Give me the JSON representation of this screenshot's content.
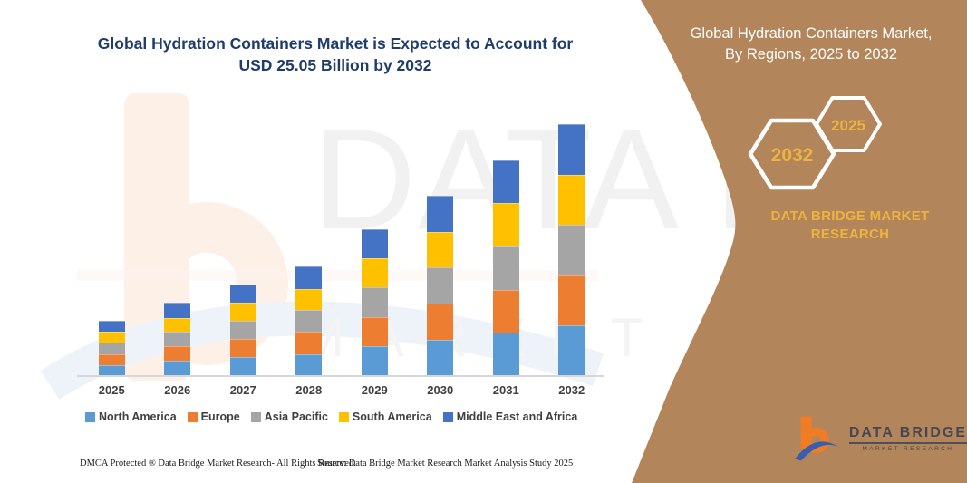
{
  "title": {
    "line1": "Global Hydration Containers Market is Expected to Account for",
    "line2": "USD 25.05 Billion by 2032"
  },
  "sidebar": {
    "heading": "Global Hydration Containers Market, By Regions, 2025 to 2032",
    "hexagon_large": "2032",
    "hexagon_small": "2025",
    "brand_line1": "DATA BRIDGE MARKET",
    "brand_line2": "RESEARCH",
    "background_color": "#b3855b",
    "accent_gold": "#edb33f"
  },
  "logo": {
    "name": "DATA BRIDGE",
    "tagline": "MARKET RESEARCH"
  },
  "watermark": {
    "line1": "DATA BRIDGE",
    "line2": "MARKET RESEARCH"
  },
  "footer": {
    "left": "DMCA Protected ® Data Bridge Market Research-  All Rights Reserved.",
    "right": "Source: Data Bridge Market Research  Market Analysis Study 2025"
  },
  "chart_data": {
    "type": "bar",
    "stacked": true,
    "title": "Global Hydration Containers Market is Expected to Account for USD 25.05 Billion by 2032",
    "unit": "USD Billion",
    "categories": [
      "2025",
      "2026",
      "2027",
      "2028",
      "2029",
      "2030",
      "2031",
      "2032"
    ],
    "series": [
      {
        "name": "North America",
        "color": "#5b9bd5",
        "values": [
          1.1,
          1.5,
          1.9,
          2.2,
          3.0,
          3.6,
          4.3,
          5.05
        ]
      },
      {
        "name": "Europe",
        "color": "#ed7d31",
        "values": [
          1.1,
          1.5,
          1.8,
          2.2,
          2.9,
          3.6,
          4.3,
          5.0
        ]
      },
      {
        "name": "Asia Pacific",
        "color": "#a5a5a5",
        "values": [
          1.1,
          1.4,
          1.8,
          2.2,
          2.9,
          3.6,
          4.3,
          5.0
        ]
      },
      {
        "name": "South America",
        "color": "#ffc000",
        "values": [
          1.1,
          1.4,
          1.8,
          2.1,
          2.9,
          3.5,
          4.3,
          5.0
        ]
      },
      {
        "name": "Middle East and Africa",
        "color": "#4472c4",
        "values": [
          1.1,
          1.5,
          1.8,
          2.2,
          2.9,
          3.6,
          4.3,
          5.0
        ]
      }
    ],
    "totals": [
      5.5,
      7.3,
      9.1,
      10.9,
      14.6,
      17.9,
      21.5,
      25.05
    ],
    "ylim": [
      0,
      26
    ],
    "grid": false,
    "legend_position": "bottom",
    "xlabel": "",
    "ylabel": ""
  }
}
